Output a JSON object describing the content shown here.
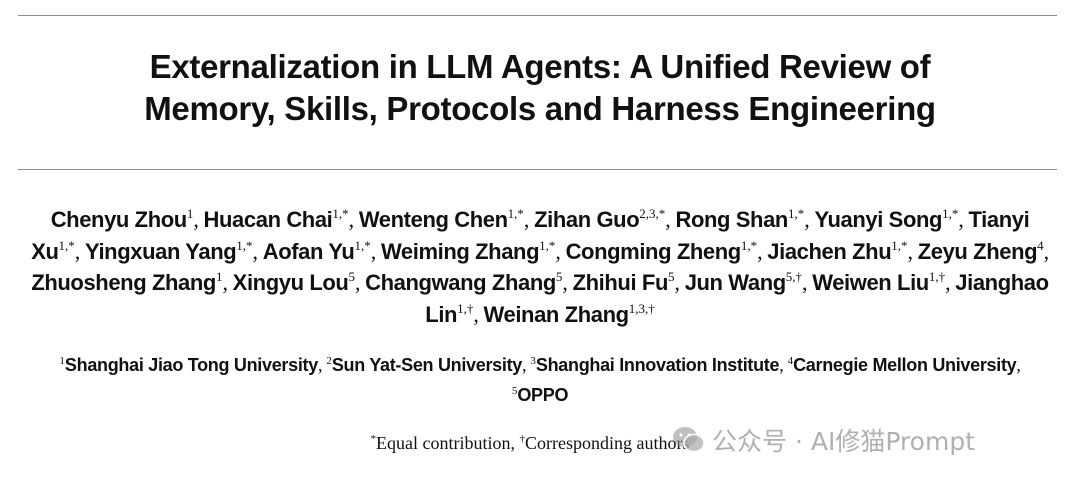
{
  "title_lines": [
    "Externalization in LLM Agents: A Unified Review of",
    "Memory, Skills, Protocols and Harness Engineering"
  ],
  "authors": [
    {
      "name": "Chenyu Zhou",
      "sup": "1"
    },
    {
      "name": "Huacan Chai",
      "sup": "1,*"
    },
    {
      "name": "Wenteng Chen",
      "sup": "1,*"
    },
    {
      "name": "Zihan Guo",
      "sup": "2,3,*"
    },
    {
      "name": "Rong Shan",
      "sup": "1,*"
    },
    {
      "name": "Yuanyi Song",
      "sup": "1,*"
    },
    {
      "name": "Tianyi Xu",
      "sup": "1,*"
    },
    {
      "name": "Yingxuan Yang",
      "sup": "1,*"
    },
    {
      "name": "Aofan Yu",
      "sup": "1,*"
    },
    {
      "name": "Weiming Zhang",
      "sup": "1,*"
    },
    {
      "name": "Congming Zheng",
      "sup": "1,*"
    },
    {
      "name": "Jiachen Zhu",
      "sup": "1,*"
    },
    {
      "name": "Zeyu Zheng",
      "sup": "4"
    },
    {
      "name": "Zhuosheng Zhang",
      "sup": "1"
    },
    {
      "name": "Xingyu Lou",
      "sup": "5"
    },
    {
      "name": "Changwang Zhang",
      "sup": "5"
    },
    {
      "name": "Zhihui Fu",
      "sup": "5"
    },
    {
      "name": "Jun Wang",
      "sup": "5,†"
    },
    {
      "name": "Weiwen Liu",
      "sup": "1,†"
    },
    {
      "name": "Jianghao Lin",
      "sup": "1,†"
    },
    {
      "name": "Weinan Zhang",
      "sup": "1,3,†"
    }
  ],
  "affiliations": [
    {
      "num": "1",
      "name": "Shanghai Jiao Tong University"
    },
    {
      "num": "2",
      "name": "Sun Yat-Sen University"
    },
    {
      "num": "3",
      "name": "Shanghai Innovation Institute"
    },
    {
      "num": "4",
      "name": "Carnegie Mellon University"
    },
    {
      "num": "5",
      "name": "OPPO"
    }
  ],
  "notes": {
    "equal_mark": "*",
    "equal": "Equal contribution",
    "corr_mark": "†",
    "corr": "Corresponding authors"
  },
  "watermark": "公众号 · AI修猫Prompt"
}
